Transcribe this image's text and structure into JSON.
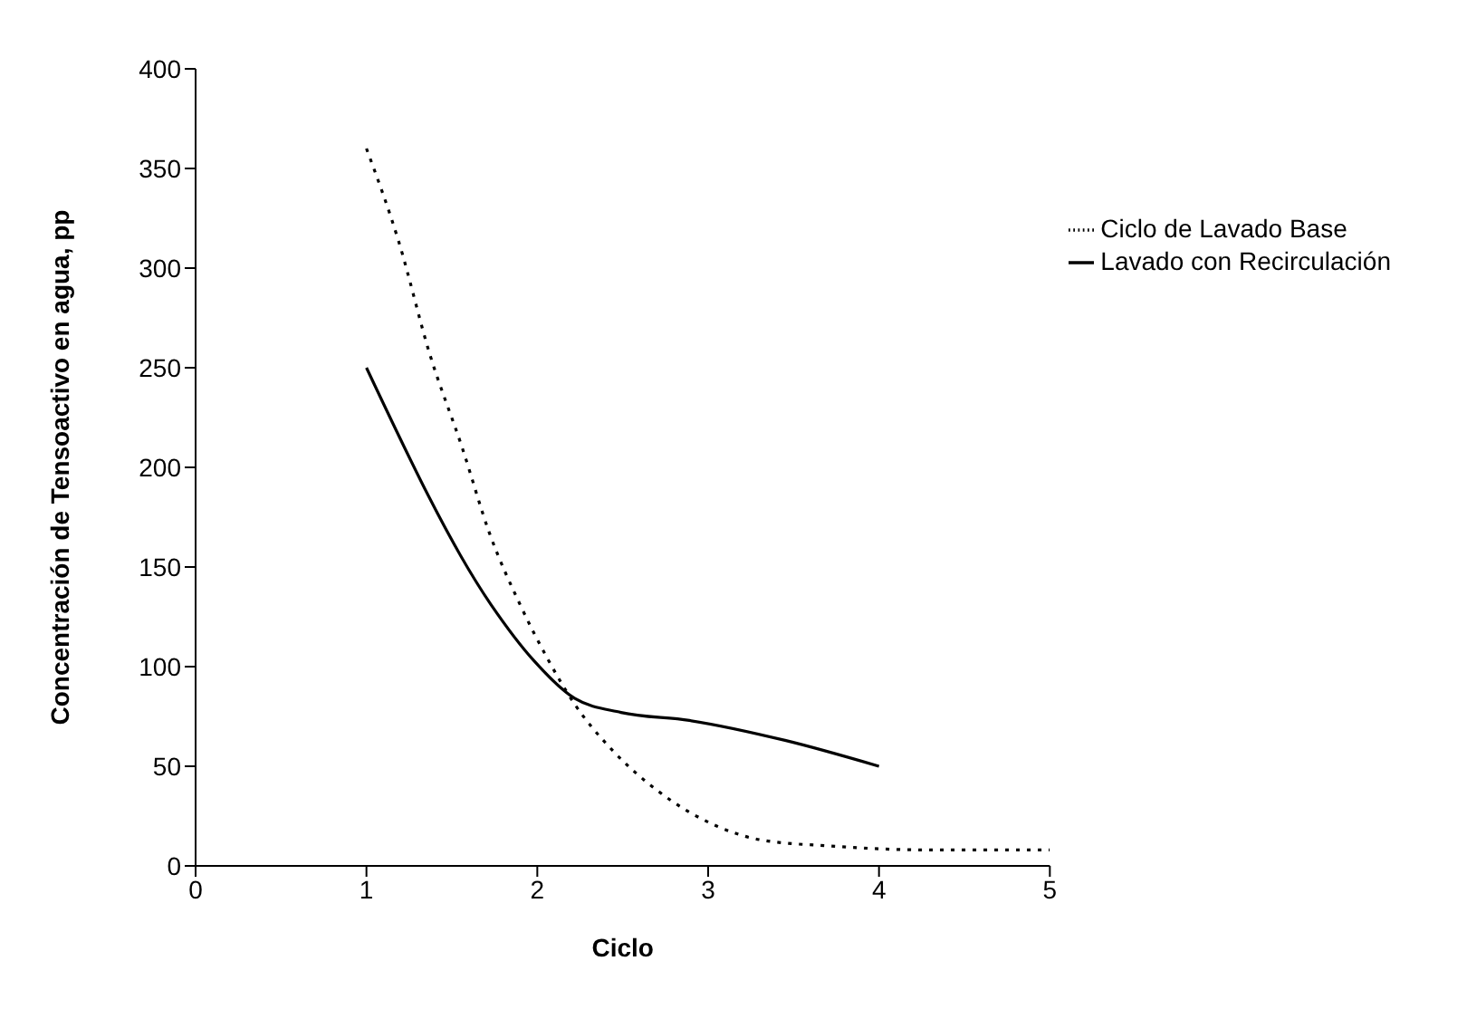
{
  "chart_data": {
    "type": "line",
    "xlabel": "Ciclo",
    "ylabel": "Concentración de Tensoactivo en agua, pp",
    "xlim": [
      0,
      5
    ],
    "xticks": [
      0,
      1,
      2,
      3,
      4,
      5
    ],
    "ylim": [
      0,
      400
    ],
    "yticks": [
      0,
      50,
      100,
      150,
      200,
      250,
      300,
      350,
      400
    ],
    "grid": false,
    "legend": "top right",
    "marker": "none",
    "series": [
      {
        "name": "Ciclo de Lavado Base",
        "color": "#000000",
        "line_style": "dotted",
        "x": [
          1,
          1.19,
          1.37,
          1.56,
          1.72,
          1.9,
          2.06,
          2.22,
          2.44,
          2.7,
          3.05,
          3.31,
          3.71,
          4.3,
          5
        ],
        "values": [
          360,
          313,
          257,
          210,
          167,
          131,
          104,
          81,
          58,
          38,
          20,
          13,
          10,
          8,
          8
        ]
      },
      {
        "name": "Lavado con Recirculación",
        "color": "#000000",
        "line_style": "solid",
        "x": [
          1,
          1.73,
          1.98,
          2.22,
          2.49,
          2.89,
          3.45,
          4
        ],
        "values": [
          250,
          131,
          103,
          84,
          77,
          73,
          63,
          50
        ]
      }
    ]
  }
}
